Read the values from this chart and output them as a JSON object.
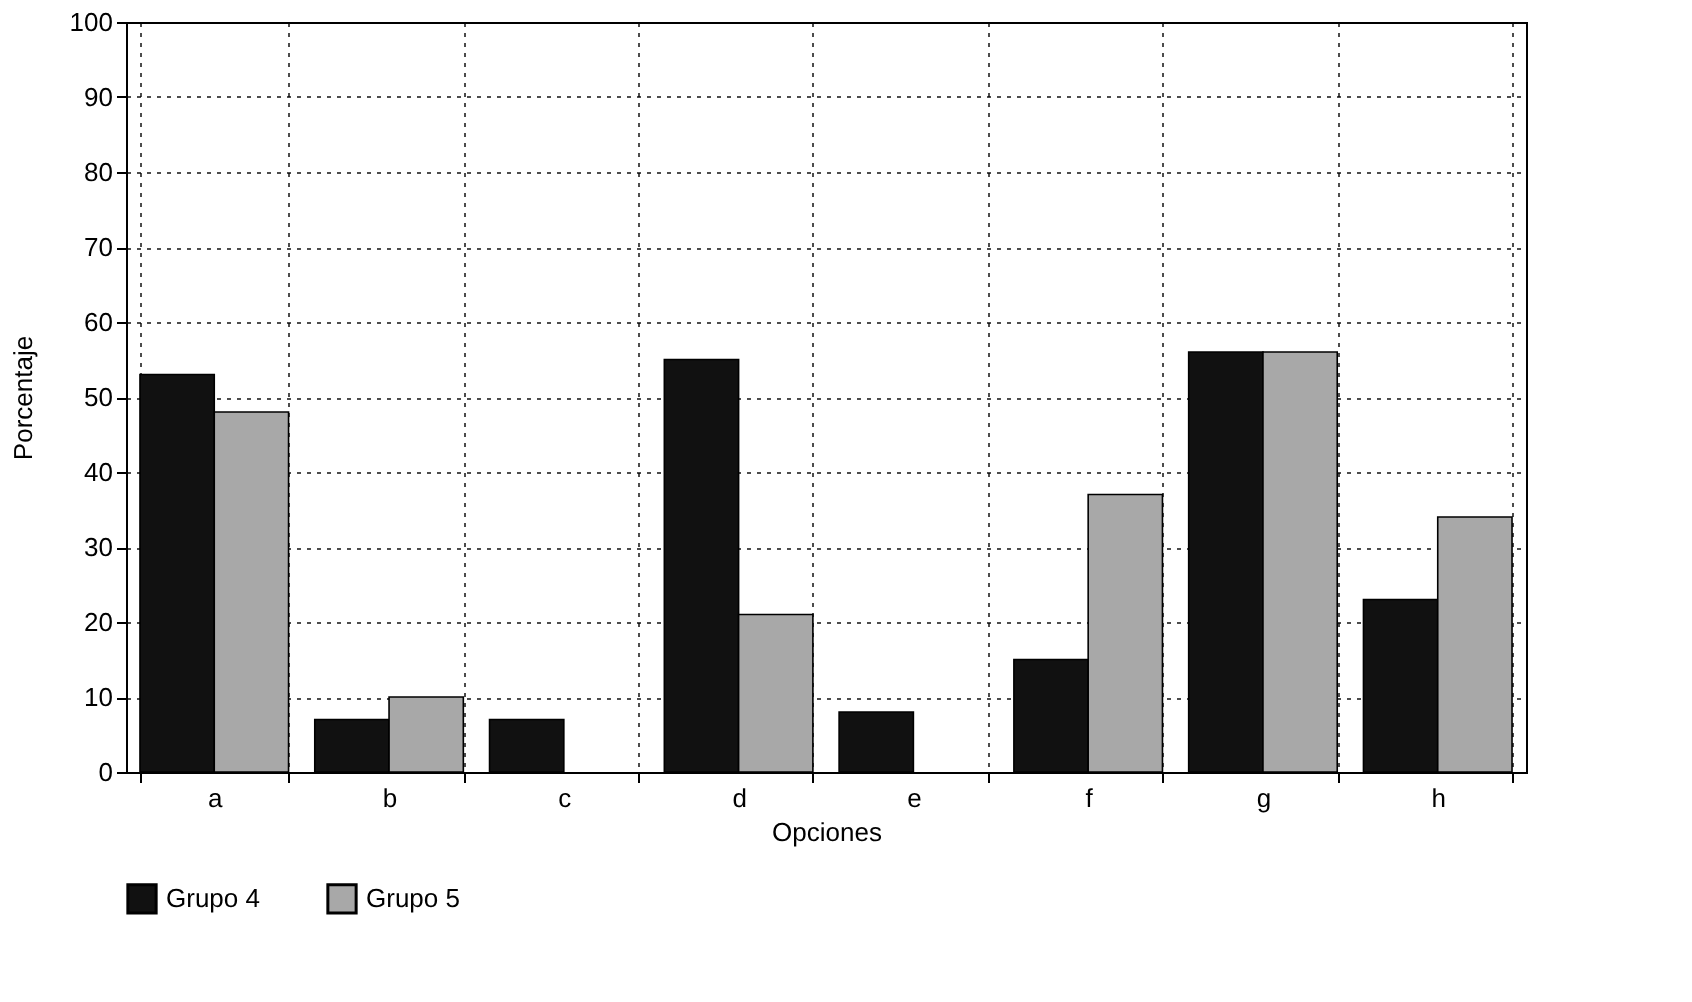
{
  "chart_data": {
    "type": "bar",
    "xlabel": "Opciones",
    "ylabel": "Porcentaje",
    "categories": [
      "a",
      "b",
      "c",
      "d",
      "e",
      "f",
      "g",
      "h"
    ],
    "series": [
      {
        "name": "Grupo 4",
        "color": "#111111",
        "values": [
          53,
          7,
          7,
          55,
          8,
          15,
          56,
          23
        ]
      },
      {
        "name": "Grupo 5",
        "color": "#a8a8a8",
        "values": [
          48,
          10,
          null,
          21,
          null,
          37,
          56,
          34
        ]
      }
    ],
    "ylim": [
      0,
      100
    ],
    "yticks": [
      0,
      10,
      20,
      30,
      40,
      50,
      60,
      70,
      80,
      90,
      100
    ],
    "grid": true,
    "legend": "bottom"
  }
}
